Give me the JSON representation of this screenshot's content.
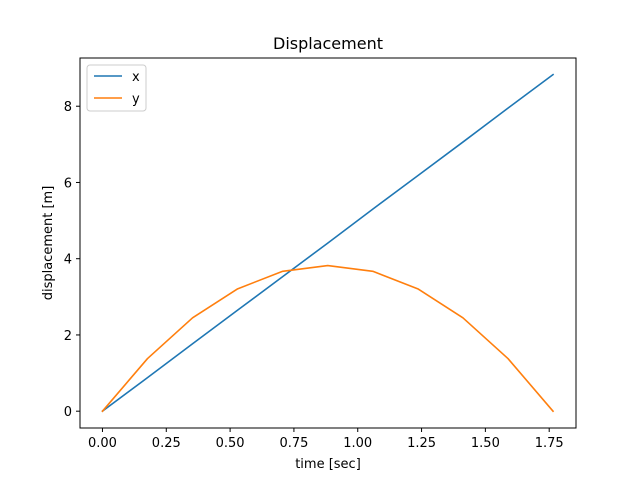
{
  "chart_data": {
    "type": "line",
    "title": "Displacement",
    "xlabel": "time [sec]",
    "ylabel": "displacement [m]",
    "xlim": [
      -0.088,
      1.855
    ],
    "ylim": [
      -0.441,
      9.265
    ],
    "xticks": [
      0.0,
      0.25,
      0.5,
      0.75,
      1.0,
      1.25,
      1.5,
      1.75
    ],
    "xtick_labels": [
      "0.00",
      "0.25",
      "0.50",
      "0.75",
      "1.00",
      "1.25",
      "1.50",
      "1.75"
    ],
    "yticks": [
      0,
      2,
      4,
      6,
      8
    ],
    "ytick_labels": [
      "0",
      "2",
      "4",
      "6",
      "8"
    ],
    "grid": false,
    "legend_position": "top-left",
    "x": [
      0.0,
      0.1765,
      0.353,
      0.5295,
      0.706,
      0.8825,
      1.059,
      1.2355,
      1.412,
      1.5885,
      1.765
    ],
    "series": [
      {
        "name": "x",
        "color": "#1f77b4",
        "values": [
          0.0,
          0.88,
          1.77,
          2.65,
          3.53,
          4.41,
          5.3,
          6.18,
          7.06,
          7.95,
          8.83
        ]
      },
      {
        "name": "y",
        "color": "#ff7f0e",
        "values": [
          0.0,
          1.38,
          2.45,
          3.21,
          3.67,
          3.82,
          3.67,
          3.21,
          2.45,
          1.38,
          0.0
        ]
      }
    ]
  }
}
